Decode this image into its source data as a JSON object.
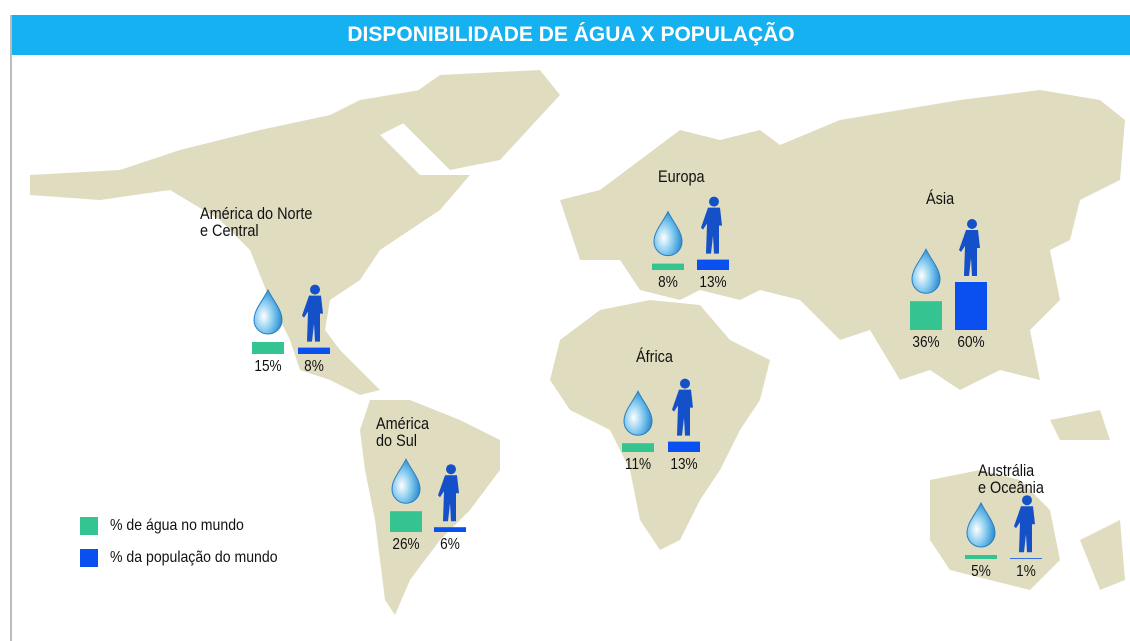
{
  "chart_data": {
    "type": "map-bars",
    "title": "DISPONIBILIDADE DE ÁGUA X POPULAÇÃO",
    "categories": [
      "América do Norte\ne Central",
      "América\ndo Sul",
      "Europa",
      "África",
      "Ásia",
      "Austrália\ne Oceânia"
    ],
    "series": [
      {
        "name": "% de água no mundo",
        "color": "#33c491",
        "values": [
          15,
          26,
          8,
          11,
          36,
          5
        ],
        "value_labels": [
          "15%",
          "26%",
          "8%",
          "11%",
          "36%",
          "5%"
        ]
      },
      {
        "name": "% da população do mundo",
        "color": "#0a50f0",
        "values": [
          8,
          6,
          13,
          13,
          60,
          1
        ],
        "value_labels": [
          "8%",
          "6%",
          "13%",
          "13%",
          "60%",
          "1%"
        ]
      }
    ]
  }
}
